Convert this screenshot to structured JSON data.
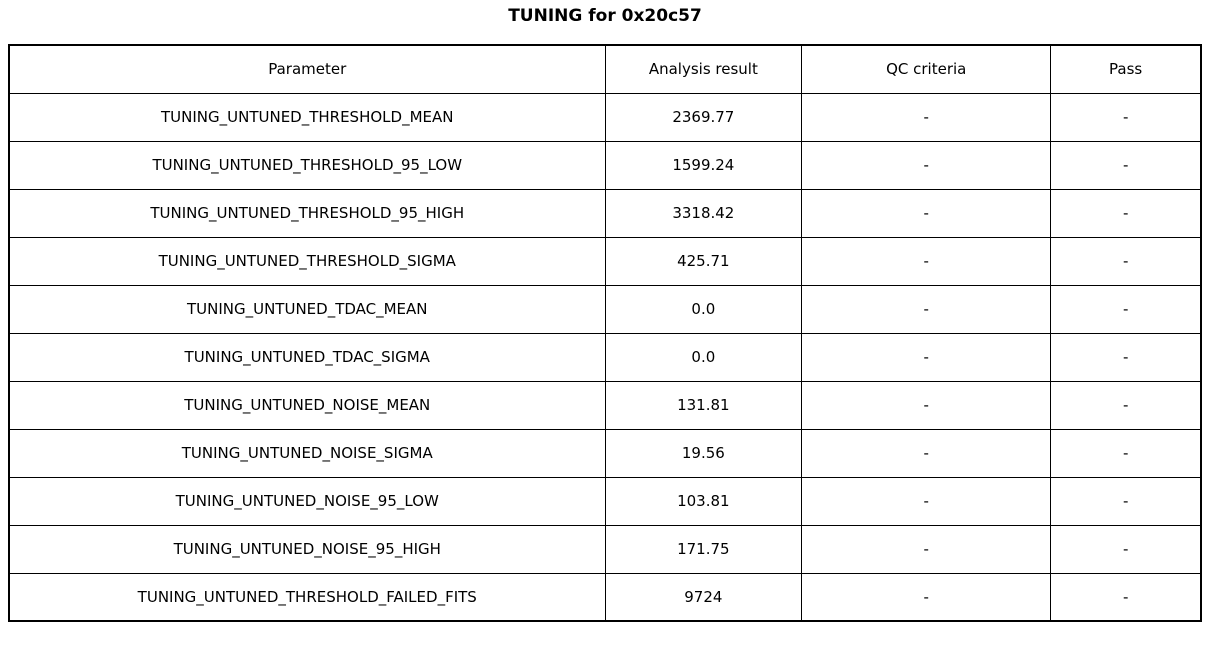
{
  "title": "TUNING for 0x20c57",
  "chart_data": {
    "type": "table",
    "title": "TUNING for 0x20c57",
    "columns": [
      "Parameter",
      "Analysis result",
      "QC criteria",
      "Pass"
    ],
    "rows": [
      {
        "parameter": "TUNING_UNTUNED_THRESHOLD_MEAN",
        "result": "2369.77",
        "qc": "-",
        "pass": "-"
      },
      {
        "parameter": "TUNING_UNTUNED_THRESHOLD_95_LOW",
        "result": "1599.24",
        "qc": "-",
        "pass": "-"
      },
      {
        "parameter": "TUNING_UNTUNED_THRESHOLD_95_HIGH",
        "result": "3318.42",
        "qc": "-",
        "pass": "-"
      },
      {
        "parameter": "TUNING_UNTUNED_THRESHOLD_SIGMA",
        "result": "425.71",
        "qc": "-",
        "pass": "-"
      },
      {
        "parameter": "TUNING_UNTUNED_TDAC_MEAN",
        "result": "0.0",
        "qc": "-",
        "pass": "-"
      },
      {
        "parameter": "TUNING_UNTUNED_TDAC_SIGMA",
        "result": "0.0",
        "qc": "-",
        "pass": "-"
      },
      {
        "parameter": "TUNING_UNTUNED_NOISE_MEAN",
        "result": "131.81",
        "qc": "-",
        "pass": "-"
      },
      {
        "parameter": "TUNING_UNTUNED_NOISE_SIGMA",
        "result": "19.56",
        "qc": "-",
        "pass": "-"
      },
      {
        "parameter": "TUNING_UNTUNED_NOISE_95_LOW",
        "result": "103.81",
        "qc": "-",
        "pass": "-"
      },
      {
        "parameter": "TUNING_UNTUNED_NOISE_95_HIGH",
        "result": "171.75",
        "qc": "-",
        "pass": "-"
      },
      {
        "parameter": "TUNING_UNTUNED_THRESHOLD_FAILED_FITS",
        "result": "9724",
        "qc": "-",
        "pass": "-"
      }
    ],
    "layout": {
      "grid": true,
      "text_color": "#000000",
      "border_color": "#000000",
      "background": "#ffffff"
    }
  }
}
